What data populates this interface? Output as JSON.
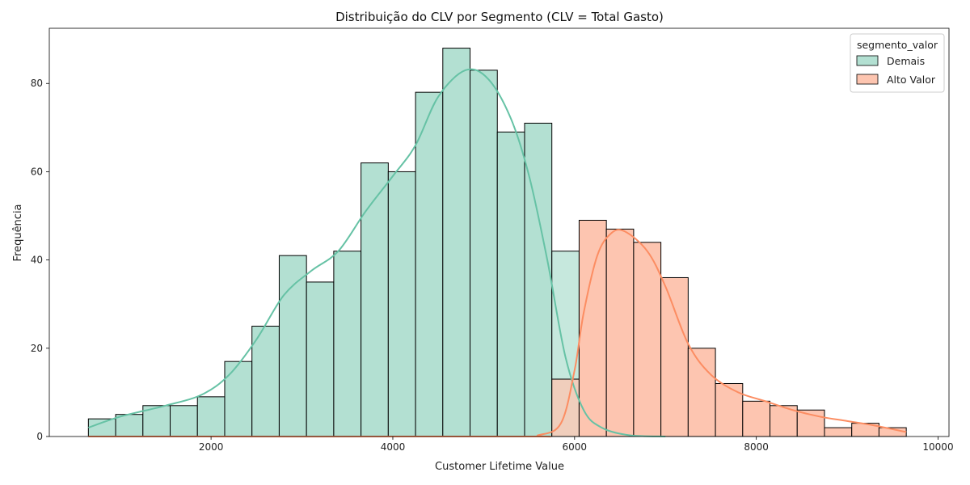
{
  "chart_data": {
    "type": "bar",
    "title": "Distribuição do CLV por Segmento (CLV = Total Gasto)",
    "xlabel": "Customer Lifetime Value",
    "ylabel": "Frequência",
    "xlim": [
      220,
      10120
    ],
    "ylim": [
      0,
      92.5
    ],
    "xticks": [
      2000,
      4000,
      6000,
      8000,
      10000
    ],
    "yticks": [
      0,
      20,
      40,
      60,
      80
    ],
    "grid": false,
    "legend": {
      "title": "segmento_valor",
      "placement": "top-right"
    },
    "bin_edges": [
      650,
      950,
      1250,
      1550,
      1850,
      2150,
      2450,
      2750,
      3050,
      3350,
      3650,
      3950,
      4250,
      4550,
      4850,
      5150,
      5450,
      5750,
      6050,
      6350,
      6650,
      6950,
      7250,
      7550,
      7850,
      8150,
      8450,
      8750,
      9050,
      9350,
      9650
    ],
    "series": [
      {
        "name": "Demais",
        "color": "#66c2a5",
        "fill": "#b3e0d2",
        "values": [
          4,
          5,
          7,
          7,
          9,
          17,
          25,
          41,
          35,
          42,
          62,
          60,
          78,
          88,
          83,
          69,
          71,
          42,
          0,
          0,
          0,
          0,
          0,
          0,
          0,
          0,
          0,
          0,
          0,
          0
        ],
        "kde": [
          [
            650,
            2.0
          ],
          [
            1000,
            4.5
          ],
          [
            1500,
            7.0
          ],
          [
            1900,
            9.5
          ],
          [
            2200,
            14.0
          ],
          [
            2500,
            22.0
          ],
          [
            2800,
            32.0
          ],
          [
            3100,
            37.5
          ],
          [
            3400,
            42.0
          ],
          [
            3700,
            51.0
          ],
          [
            4000,
            59.0
          ],
          [
            4250,
            66.0
          ],
          [
            4500,
            77.0
          ],
          [
            4800,
            83.0
          ],
          [
            5050,
            81.0
          ],
          [
            5300,
            72.0
          ],
          [
            5500,
            59.0
          ],
          [
            5700,
            40.0
          ],
          [
            5900,
            18.0
          ],
          [
            6100,
            6.0
          ],
          [
            6300,
            2.0
          ],
          [
            6600,
            0.3
          ],
          [
            7000,
            0.0
          ]
        ]
      },
      {
        "name": "Alto Valor",
        "color": "#fc8d62",
        "fill": "#fdc5b0",
        "values": [
          0,
          0,
          0,
          0,
          0,
          0,
          0,
          0,
          0,
          0,
          0,
          0,
          0,
          0,
          0,
          0,
          0,
          13,
          49,
          47,
          44,
          36,
          20,
          12,
          8,
          7,
          6,
          2,
          3,
          2
        ],
        "kde": [
          [
            650,
            0.0
          ],
          [
            5300,
            0.0
          ],
          [
            5600,
            0.3
          ],
          [
            5850,
            3.0
          ],
          [
            6000,
            15.0
          ],
          [
            6100,
            28.0
          ],
          [
            6250,
            41.0
          ],
          [
            6400,
            46.0
          ],
          [
            6550,
            46.5
          ],
          [
            6800,
            42.0
          ],
          [
            7000,
            34.0
          ],
          [
            7250,
            21.0
          ],
          [
            7500,
            14.0
          ],
          [
            7800,
            10.0
          ],
          [
            8100,
            8.0
          ],
          [
            8400,
            6.0
          ],
          [
            8700,
            4.5
          ],
          [
            9000,
            3.5
          ],
          [
            9300,
            2.5
          ],
          [
            9650,
            1.0
          ]
        ]
      }
    ]
  }
}
